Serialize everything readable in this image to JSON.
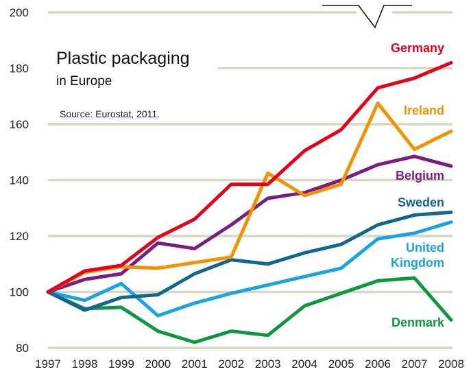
{
  "chart_data": {
    "type": "line",
    "title": "Plastic packaging",
    "subtitle": "in Europe",
    "source": "Source: Eurostat, 2011.",
    "xlabel": "",
    "ylabel": "",
    "x": [
      "1997",
      "1998",
      "1999",
      "2000",
      "2001",
      "2002",
      "2003",
      "2004",
      "2005",
      "2006",
      "2007",
      "2008"
    ],
    "y_ticks": [
      "80",
      "100",
      "120",
      "140",
      "160",
      "180",
      "200"
    ],
    "ylim": [
      80,
      200
    ],
    "grid": "horizontal",
    "legend": "labels at line ends",
    "series": [
      {
        "name": "Germany",
        "color": "#e3001b",
        "values": [
          100,
          107.5,
          109.5,
          119.5,
          126,
          138.5,
          138.5,
          150.5,
          158,
          173,
          176.5,
          182
        ]
      },
      {
        "name": "Ireland",
        "color": "#f39200",
        "values": [
          100,
          107,
          109,
          108.5,
          110.5,
          112.5,
          142.5,
          134.5,
          138.5,
          167.5,
          151,
          157.5
        ]
      },
      {
        "name": "Belgium",
        "color": "#7b1d7e",
        "values": [
          100,
          104.5,
          106.5,
          117.5,
          115.5,
          124,
          133.5,
          135.5,
          140,
          145.5,
          148.5,
          145
        ]
      },
      {
        "name": "Sweden",
        "color": "#13668d",
        "values": [
          100,
          93.5,
          98,
          99,
          106.5,
          111.5,
          110,
          114,
          117,
          124,
          127.5,
          128.5
        ]
      },
      {
        "name": "United Kingdom",
        "label_lines": [
          "United",
          "Kingdom"
        ],
        "color": "#1aa3e0",
        "values": [
          100,
          97,
          103,
          91.5,
          96,
          99.5,
          102.5,
          105.5,
          108.5,
          119,
          121,
          125
        ]
      },
      {
        "name": "Denmark",
        "color": "#0f9640",
        "values": [
          100,
          94,
          94.5,
          86,
          82,
          86,
          84.5,
          95,
          99.5,
          104,
          105,
          90
        ]
      }
    ]
  }
}
